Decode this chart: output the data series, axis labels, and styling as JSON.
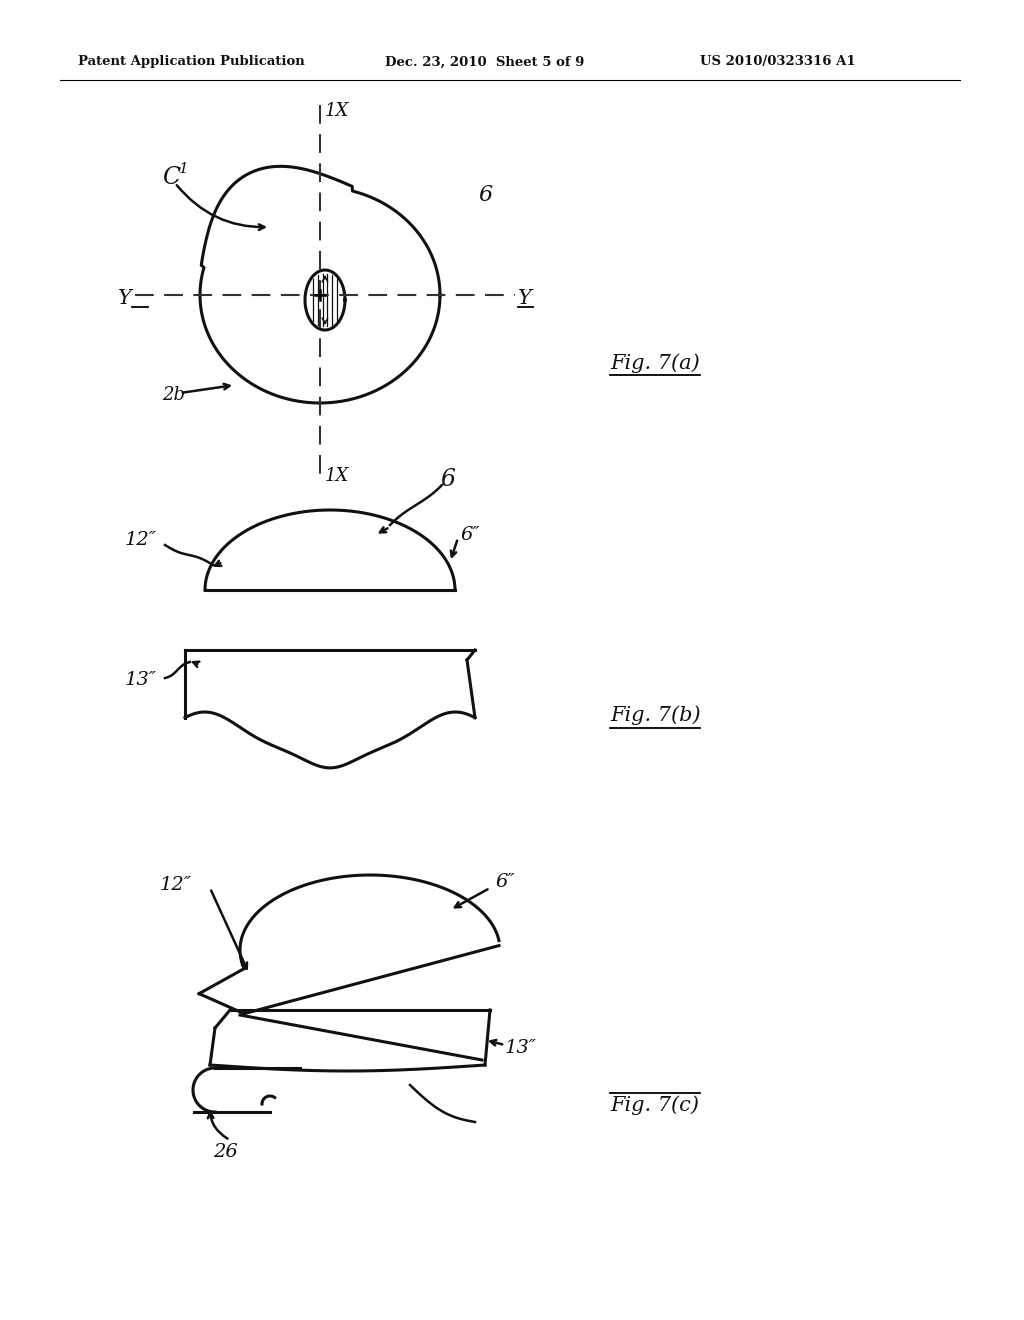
{
  "bg_color": "#ffffff",
  "header_left": "Patent Application Publication",
  "header_mid": "Dec. 23, 2010  Sheet 5 of 9",
  "header_right": "US 2010/0323316 A1",
  "fig7a_label": "Fig. 7(a)",
  "fig7b_label": "Fig. 7(b)",
  "fig7c_label": "Fig. 7(c)"
}
